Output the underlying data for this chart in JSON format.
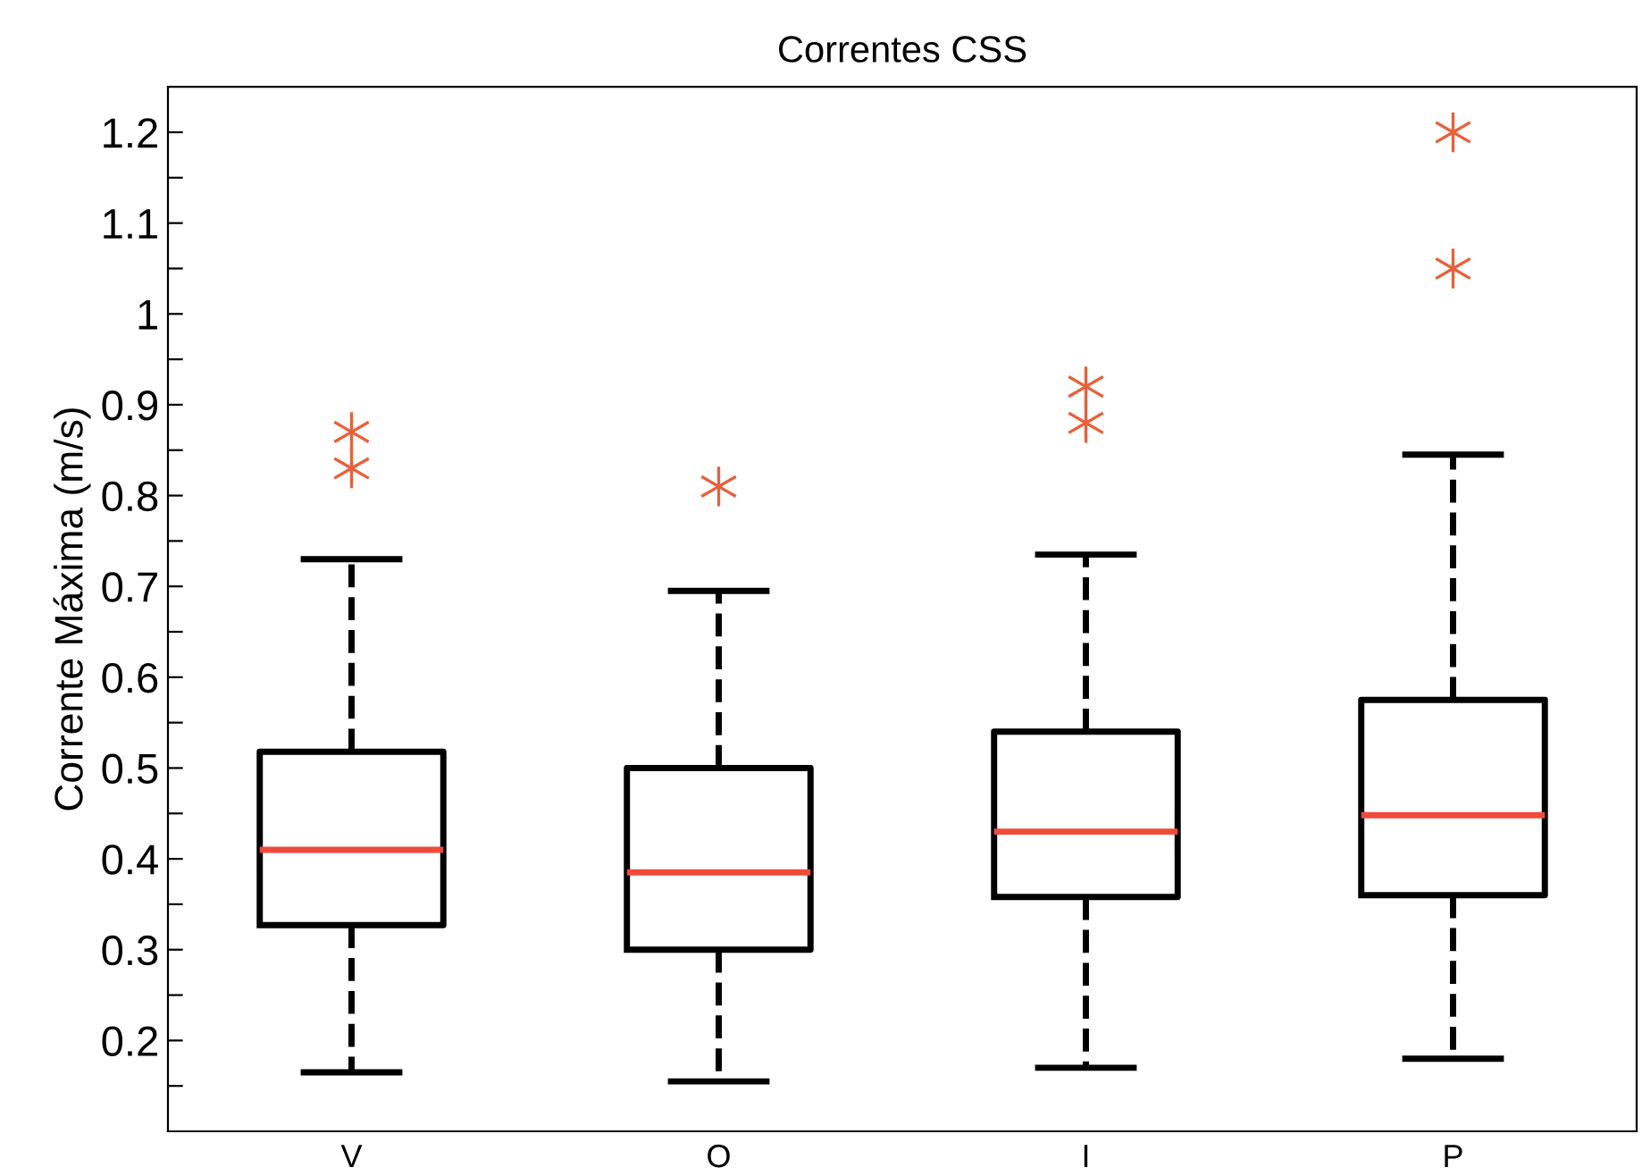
{
  "chart_data": {
    "type": "box",
    "title": "Correntes CSS",
    "ylabel": "Corrente Máxima (m/s)",
    "categories": [
      "V",
      "O",
      "I",
      "P"
    ],
    "boxes": [
      {
        "low": 0.165,
        "q1": 0.327,
        "median": 0.41,
        "q3": 0.518,
        "high": 0.73,
        "outliers": [
          0.83,
          0.87
        ]
      },
      {
        "low": 0.155,
        "q1": 0.3,
        "median": 0.385,
        "q3": 0.5,
        "high": 0.695,
        "outliers": [
          0.81
        ]
      },
      {
        "low": 0.17,
        "q1": 0.358,
        "median": 0.43,
        "q3": 0.54,
        "high": 0.735,
        "outliers": [
          0.88,
          0.92
        ]
      },
      {
        "low": 0.18,
        "q1": 0.36,
        "median": 0.448,
        "q3": 0.575,
        "high": 0.845,
        "outliers": [
          1.05,
          1.2
        ]
      }
    ],
    "ylim": [
      0.1,
      1.25
    ],
    "yticks": [
      {
        "value": 0.15,
        "label": null
      },
      0.2,
      {
        "value": 0.25,
        "label": null
      },
      0.3,
      {
        "value": 0.35,
        "label": null
      },
      0.4,
      {
        "value": 0.45,
        "label": null
      },
      0.5,
      {
        "value": 0.55,
        "label": null
      },
      0.6,
      {
        "value": 0.65,
        "label": null
      },
      0.7,
      {
        "value": 0.75,
        "label": null
      },
      0.8,
      {
        "value": 0.85,
        "label": null
      },
      0.9,
      {
        "value": 0.95,
        "label": null
      },
      1,
      {
        "value": 1.05,
        "label": null
      },
      1.1,
      {
        "value": 1.15,
        "label": null
      },
      1.2
    ],
    "marker": "star",
    "line_style": "dashed",
    "grid": false
  }
}
